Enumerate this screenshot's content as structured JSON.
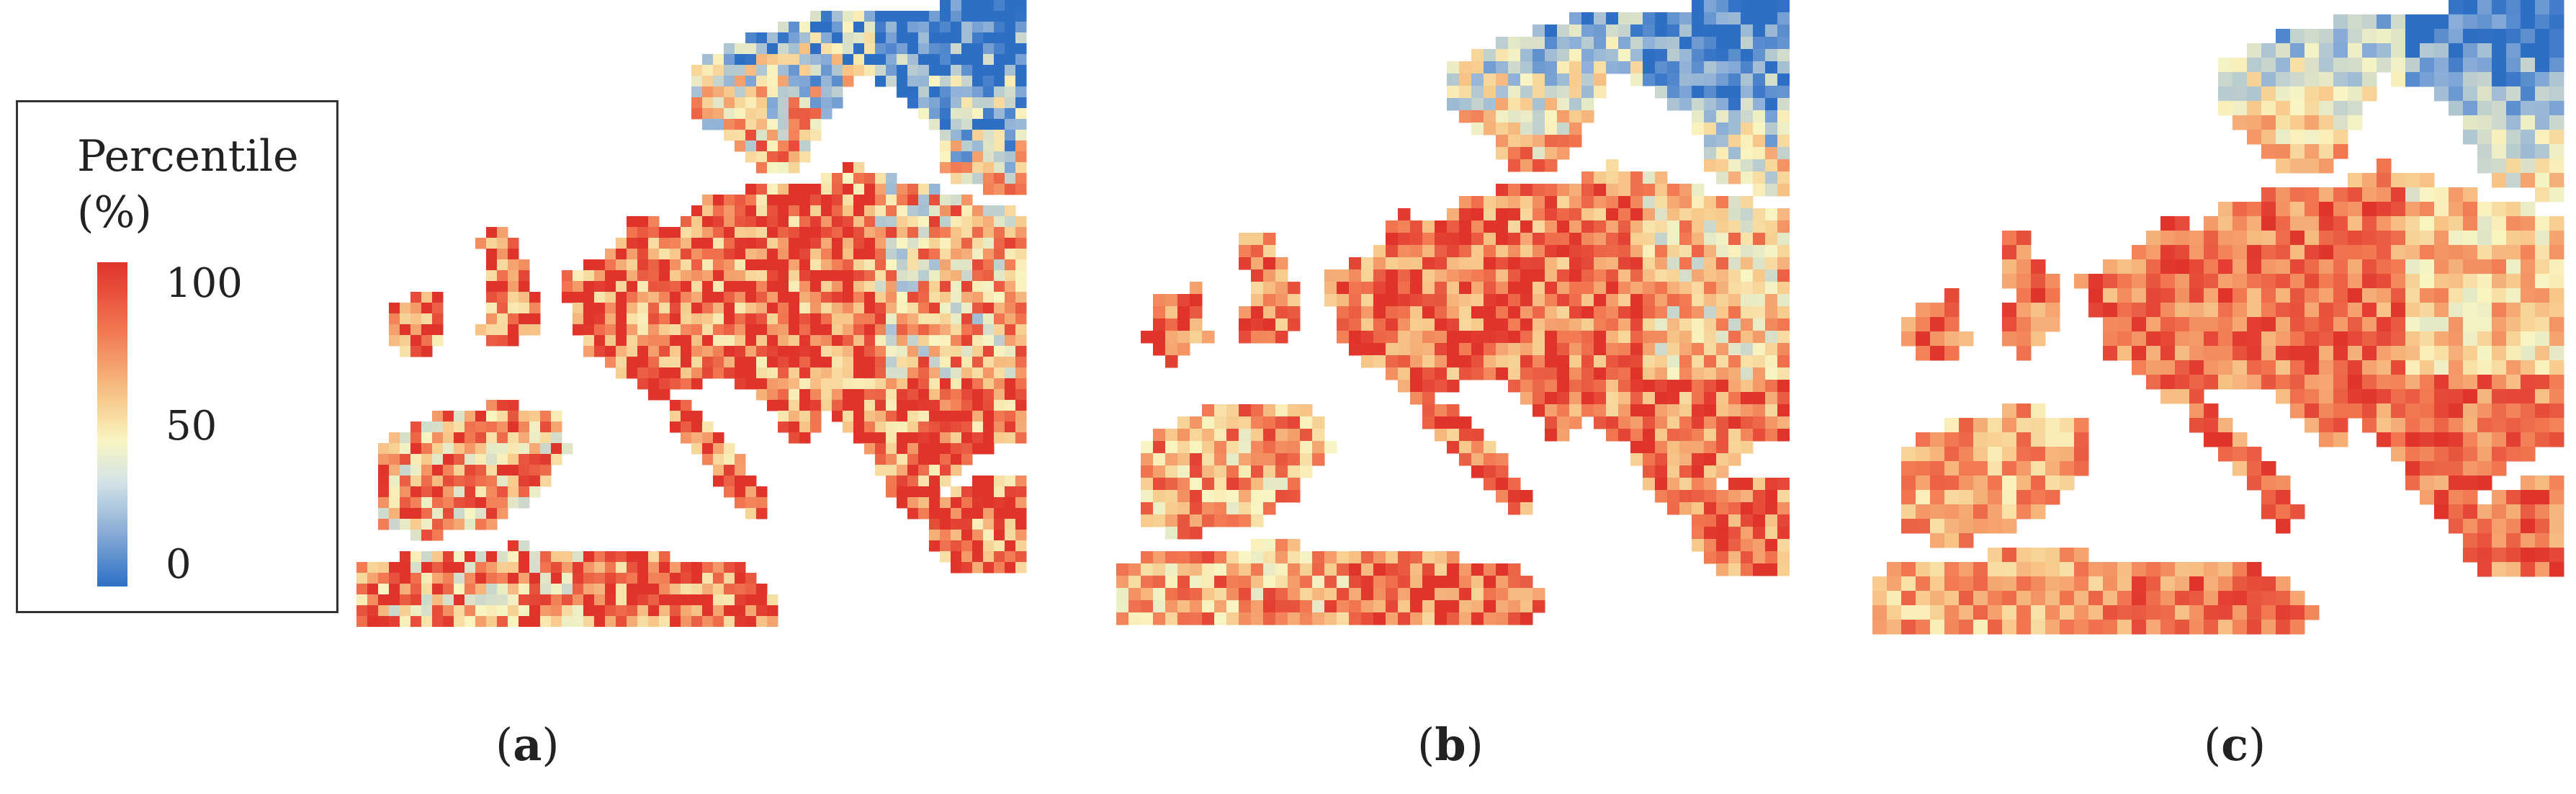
{
  "legend": {
    "title_line1": "Percentile",
    "title_line2": "(%)",
    "ticks": [
      "100",
      "50",
      "0"
    ],
    "colors": {
      "high": "#e0332b",
      "mid": "#f9f5c2",
      "low": "#2e6fc6"
    }
  },
  "panels": [
    {
      "id": "a",
      "caption_letter": "a"
    },
    {
      "id": "b",
      "caption_letter": "b"
    },
    {
      "id": "c",
      "caption_letter": "c"
    }
  ],
  "caption_open": "(",
  "caption_close": ")"
}
